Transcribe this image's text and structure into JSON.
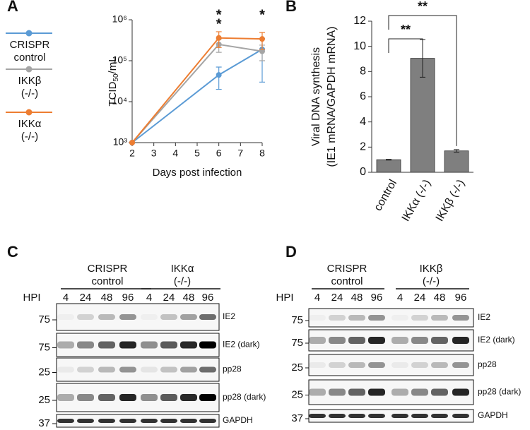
{
  "panels": [
    "A",
    "B",
    "C",
    "D"
  ],
  "chart_data": [
    {
      "type": "line",
      "xlabel": "Days post infection",
      "ylabel": {
        "text": "TCID",
        "subscript": "50",
        "suffix": "/mL"
      },
      "x": [
        2,
        6,
        8
      ],
      "xlim": [
        2,
        8
      ],
      "xticks": [
        2,
        3,
        4,
        5,
        6,
        7,
        8
      ],
      "log_scale_y": true,
      "ylim": [
        1000,
        1000000
      ],
      "yticks": [
        {
          "value": 1000,
          "label": "10³"
        },
        {
          "value": 10000,
          "label": "10⁴"
        },
        {
          "value": 100000,
          "label": "10⁵"
        },
        {
          "value": 1000000,
          "label": "10⁶"
        }
      ],
      "series": [
        {
          "name": "CRISPR control",
          "color": "#5b9bd5",
          "values": [
            1000,
            45000,
            190000
          ],
          "errors": [
            0,
            25000,
            160000
          ],
          "significance": [
            null,
            null,
            null
          ]
        },
        {
          "name": "IKKβ (-/-)",
          "color": "#a5a5a5",
          "values": [
            1000,
            250000,
            170000
          ],
          "errors": [
            0,
            90000,
            70000
          ],
          "significance": [
            null,
            "*",
            null
          ]
        },
        {
          "name": "IKKα (-/-)",
          "color": "#ed7d31",
          "values": [
            1000,
            360000,
            340000
          ],
          "errors": [
            0,
            150000,
            150000
          ],
          "significance": [
            null,
            "*",
            "*"
          ]
        }
      ]
    },
    {
      "type": "bar",
      "ylabel": [
        "Viral DNA synthesis",
        "(IE1 mRNA/GAPDH mRNA)"
      ],
      "categories": [
        "control",
        "IKKα (-/-)",
        "IKKβ (-/-)"
      ],
      "values": [
        1.0,
        9.05,
        1.7
      ],
      "errors": [
        0.03,
        1.5,
        0.1
      ],
      "color": "#7f7f7f",
      "ylim": [
        0,
        12
      ],
      "yticks": [
        0,
        2,
        4,
        6,
        8,
        10,
        12
      ],
      "annotations": [
        {
          "text": "**",
          "from": 0,
          "to": 1
        },
        {
          "text": "**",
          "from": 0,
          "to": 2
        }
      ]
    }
  ],
  "blots": [
    {
      "hpi_label": "HPI",
      "groups": [
        {
          "label": "CRISPR control",
          "timepoints": [
            4,
            24,
            48,
            96
          ]
        },
        {
          "label": "IKKα (-/-)",
          "timepoints": [
            4,
            24,
            48,
            96
          ]
        }
      ],
      "rows": [
        {
          "marker": 75,
          "name": "IE2"
        },
        {
          "marker": 75,
          "name": "IE2 (dark)"
        },
        {
          "marker": 25,
          "name": "pp28"
        },
        {
          "marker": 25,
          "name": "pp28 (dark)"
        },
        {
          "marker": 37,
          "name": "GAPDH"
        }
      ]
    },
    {
      "hpi_label": "HPI",
      "groups": [
        {
          "label": "CRISPR control",
          "timepoints": [
            4,
            24,
            48,
            96
          ]
        },
        {
          "label": "IKKβ (-/-)",
          "timepoints": [
            4,
            24,
            48,
            96
          ]
        }
      ],
      "rows": [
        {
          "marker": 75,
          "name": "IE2"
        },
        {
          "marker": 75,
          "name": "IE2 (dark)"
        },
        {
          "marker": 25,
          "name": "pp28"
        },
        {
          "marker": 25,
          "name": "pp28 (dark)"
        },
        {
          "marker": 37,
          "name": "GAPDH"
        }
      ]
    }
  ]
}
